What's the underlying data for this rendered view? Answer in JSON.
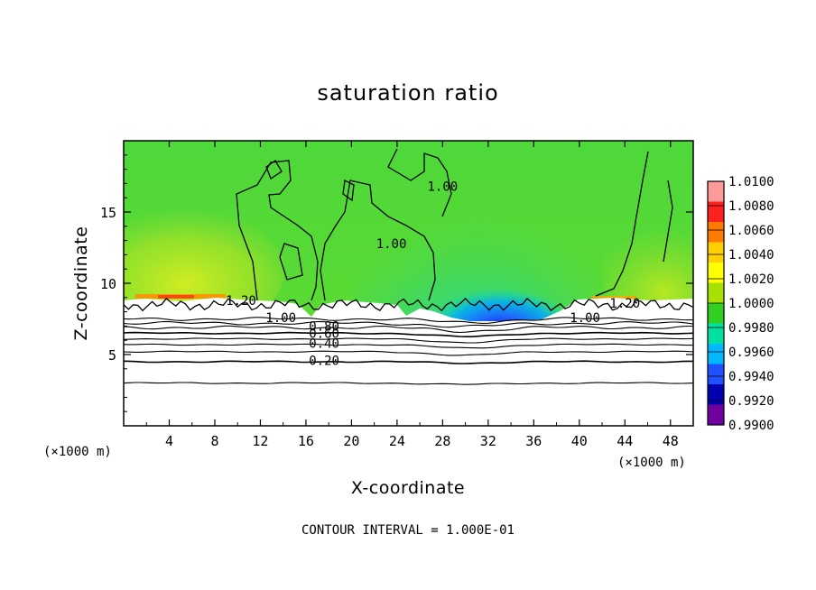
{
  "chart_data": {
    "type": "heatmap",
    "title": "saturation ratio",
    "xlabel": "X-coordinate",
    "ylabel": "Z-coordinate",
    "x_unit_left": "(×1000 m)",
    "x_unit_right": "(×1000 m)",
    "footer": "CONTOUR INTERVAL = 1.000E-01",
    "xlim": [
      0,
      50
    ],
    "ylim": [
      0,
      20
    ],
    "x_ticks": [
      4,
      8,
      12,
      16,
      20,
      24,
      28,
      32,
      36,
      40,
      44,
      48
    ],
    "y_ticks": [
      5,
      10,
      15
    ],
    "colorbar": {
      "min": 0.99,
      "max": 1.01,
      "levels": [
        "1.0100",
        "1.0080",
        "1.0060",
        "1.0040",
        "1.0020",
        "1.0000",
        "0.9980",
        "0.9960",
        "0.9940",
        "0.9920",
        "0.9900"
      ],
      "colors": [
        "#ff9a9a",
        "#ff2020",
        "#ff7a00",
        "#ffd000",
        "#ffff00",
        "#a8e000",
        "#30d020",
        "#00e0a0",
        "#00b8ff",
        "#2050ff",
        "#0000b0",
        "#7000a0"
      ]
    },
    "contour_labels": [
      {
        "text": "1.20",
        "x": 10.3,
        "y": 8.8
      },
      {
        "text": "1.00",
        "x": 13.8,
        "y": 7.6
      },
      {
        "text": "0.80",
        "x": 17.6,
        "y": 7.0
      },
      {
        "text": "0.60",
        "x": 17.6,
        "y": 6.5
      },
      {
        "text": "0.40",
        "x": 17.6,
        "y": 5.8
      },
      {
        "text": "0.20",
        "x": 17.6,
        "y": 4.6
      },
      {
        "text": "1.00",
        "x": 28.0,
        "y": 16.8
      },
      {
        "text": "1.00",
        "x": 23.5,
        "y": 12.8
      },
      {
        "text": "1.00",
        "x": 40.5,
        "y": 7.6
      },
      {
        "text": "1.20",
        "x": 44.0,
        "y": 8.6
      }
    ],
    "cloud_base_z": 8.5,
    "horizontal_contours_z": [
      3.0,
      4.5,
      5.2,
      5.7,
      6.1,
      6.5,
      6.9,
      7.2,
      7.5
    ]
  }
}
